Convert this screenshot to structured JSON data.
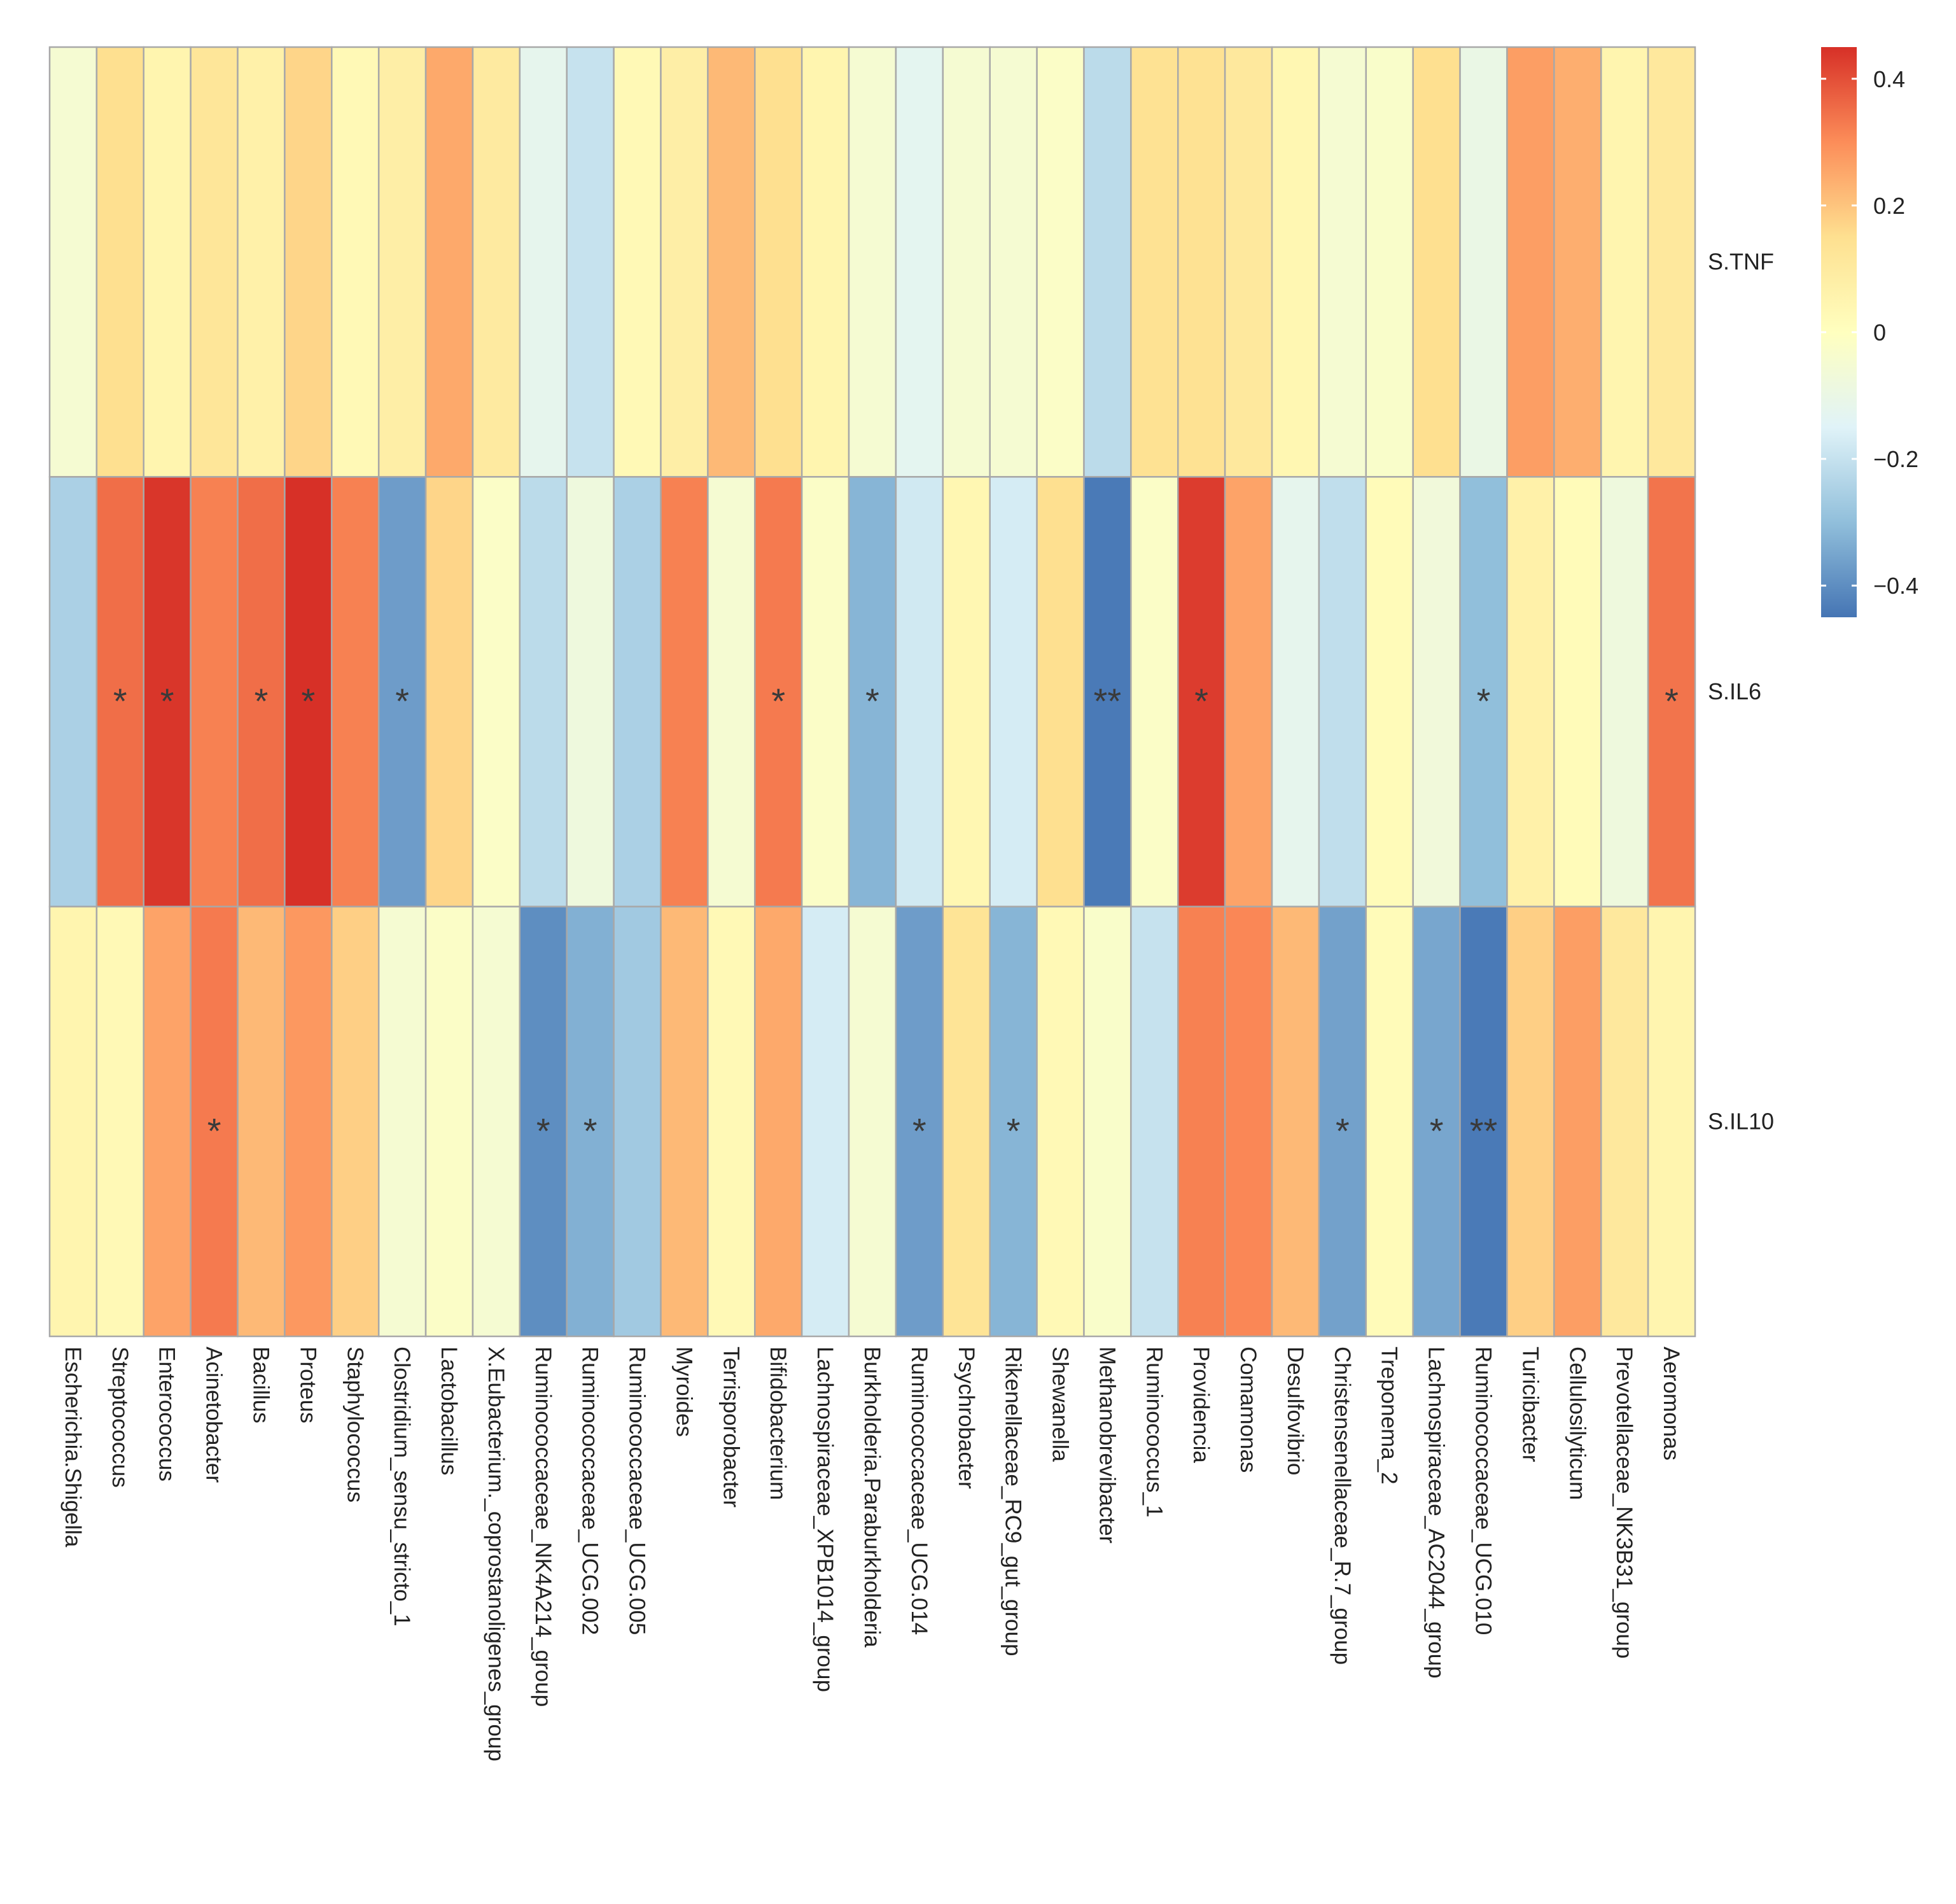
{
  "chart_data": {
    "type": "heatmap",
    "columns": [
      "Escherichia.Shigella",
      "Streptococcus",
      "Enterococcus",
      "Acinetobacter",
      "Bacillus",
      "Proteus",
      "Staphylococcus",
      "Clostridium_sensu_stricto_1",
      "Lactobacillus",
      "X.Eubacterium._coprostanoligenes_group",
      "Ruminococcaceae_NK4A214_group",
      "Ruminococcaceae_UCG.002",
      "Ruminococcaceae_UCG.005",
      "Myroides",
      "Terrisporobacter",
      "Bifidobacterium",
      "Lachnospiraceae_XPB1014_group",
      "Burkholderia.Paraburkholderia",
      "Ruminococcaceae_UCG.014",
      "Psychrobacter",
      "Rikenellaceae_RC9_gut_group",
      "Shewanella",
      "Methanobrevibacter",
      "Ruminococcus_1",
      "Providencia",
      "Comamonas",
      "Desulfovibrio",
      "Christensenellaceae_R.7_group",
      "Treponema_2",
      "Lachnospiraceae_AC2044_group",
      "Ruminococcaceae_UCG.010",
      "Turicibacter",
      "Cellulosilyticum",
      "Prevotellaceae_NK3B31_group",
      "Aeromonas"
    ],
    "rows": [
      {
        "name": "S.TNF",
        "values": [
          -0.05,
          0.15,
          0.05,
          0.12,
          0.07,
          0.17,
          0.03,
          0.08,
          0.25,
          0.1,
          -0.12,
          -0.2,
          0.03,
          0.08,
          0.22,
          0.15,
          0.05,
          -0.05,
          -0.13,
          -0.05,
          -0.05,
          -0.02,
          -0.22,
          0.14,
          0.14,
          0.11,
          0.04,
          -0.05,
          -0.03,
          0.15,
          -0.1,
          0.27,
          0.24,
          0.05,
          0.11
        ],
        "stars": [
          "",
          "",
          "",
          "",
          "",
          "",
          "",
          "",
          "",
          "",
          "",
          "",
          "",
          "",
          "",
          "",
          "",
          "",
          "",
          "",
          "",
          "",
          "",
          "",
          "",
          "",
          "",
          "",
          "",
          "",
          "",
          "",
          "",
          "",
          ""
        ]
      },
      {
        "name": "S.IL6",
        "values": [
          -0.25,
          0.35,
          0.44,
          0.32,
          0.35,
          0.45,
          0.32,
          -0.37,
          0.17,
          -0.02,
          -0.22,
          -0.08,
          -0.25,
          0.32,
          -0.05,
          0.33,
          -0.02,
          -0.32,
          -0.18,
          0.04,
          -0.17,
          0.15,
          -0.44,
          -0.02,
          0.43,
          0.26,
          -0.12,
          -0.21,
          0.02,
          -0.07,
          -0.3,
          0.07,
          0.02,
          -0.08,
          0.34
        ],
        "stars": [
          "",
          "*",
          "*",
          "",
          "*",
          "*",
          "",
          "*",
          "",
          "",
          "",
          "",
          "",
          "",
          "",
          "*",
          "",
          "*",
          "",
          "",
          "",
          "",
          "**",
          "",
          "*",
          "",
          "",
          "",
          "",
          "",
          "*",
          "",
          "",
          "",
          "*"
        ]
      },
      {
        "name": "S.IL10",
        "values": [
          0.05,
          0.03,
          0.26,
          0.33,
          0.22,
          0.28,
          0.18,
          -0.05,
          -0.02,
          -0.05,
          -0.4,
          -0.33,
          -0.27,
          0.22,
          0.03,
          0.25,
          -0.17,
          -0.05,
          -0.37,
          0.13,
          -0.32,
          0.03,
          -0.03,
          -0.2,
          0.32,
          0.31,
          0.22,
          -0.36,
          0.02,
          -0.35,
          -0.44,
          0.18,
          0.27,
          0.11,
          0.05
        ],
        "stars": [
          "",
          "",
          "",
          "*",
          "",
          "",
          "",
          "",
          "",
          "",
          "*",
          "*",
          "",
          "",
          "",
          "",
          "",
          "",
          "*",
          "",
          "*",
          "",
          "",
          "",
          "",
          "",
          "",
          "*",
          "",
          "*",
          "**",
          "",
          "",
          "",
          ""
        ]
      }
    ],
    "colorbar": {
      "range": [
        -0.45,
        0.45
      ],
      "ticks": [
        0.4,
        0.2,
        0,
        -0.2,
        -0.4
      ],
      "tick_labels": [
        "0.4",
        "0.2",
        "0",
        "−0.2",
        "−0.4"
      ],
      "colors": [
        "#4575b4",
        "#91bfdb",
        "#e0f3f8",
        "#ffffbf",
        "#fee090",
        "#fc8d59",
        "#d73027"
      ]
    },
    "title": "",
    "xlabel": "",
    "ylabel": ""
  }
}
